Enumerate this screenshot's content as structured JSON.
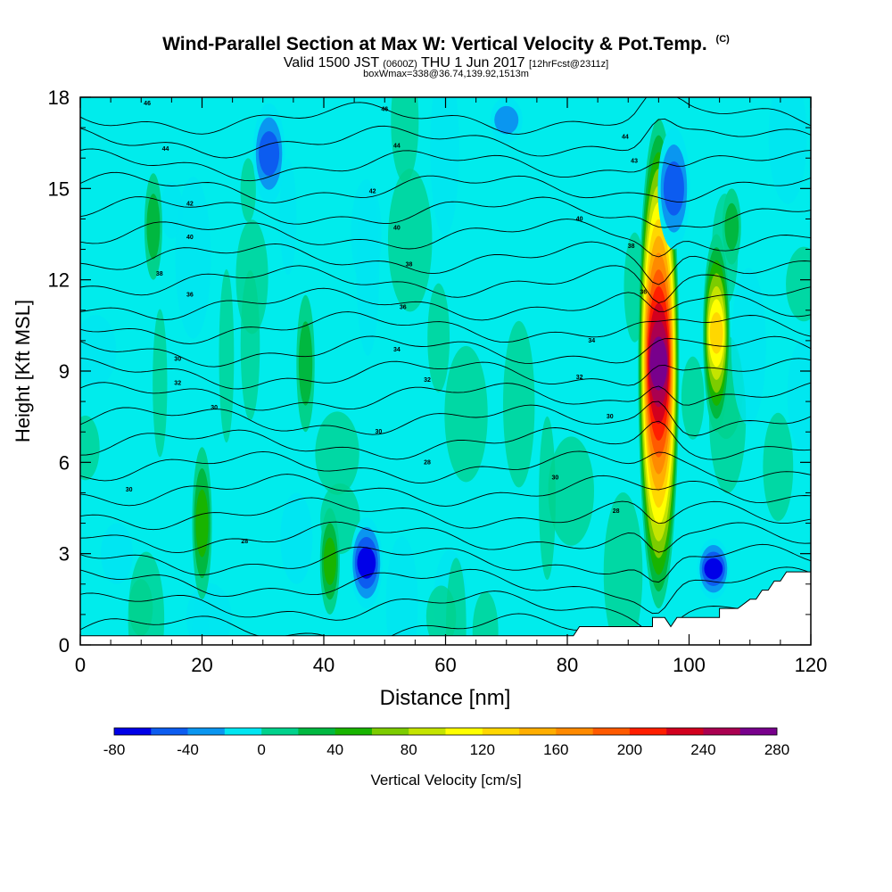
{
  "title": {
    "main": "Wind-Parallel Section at Max W: Vertical Velocity & Pot.Temp.",
    "copyright": "(C)",
    "valid_prefix": "Valid 1500 JST",
    "valid_utc": "(0600Z)",
    "valid_date": "THU 1 Jun 2017",
    "forecast": "[12hrFcst@2311z]",
    "box_info": "boxWmax=338@36.74,139.92,1513m"
  },
  "chart_data": {
    "type": "heatmap",
    "xlabel": "Distance [nm]",
    "ylabel": "Height [Kft MSL]",
    "xlim": [
      0,
      120
    ],
    "ylim": [
      0,
      18
    ],
    "x_ticks": [
      0,
      20,
      40,
      60,
      80,
      100,
      120
    ],
    "y_ticks": [
      0,
      3,
      6,
      9,
      12,
      15,
      18
    ],
    "grid": false,
    "colorbar": {
      "label": "Vertical Velocity [cm/s]",
      "placement": "bottom",
      "min": -80,
      "max": 280,
      "step": 20,
      "tick_labels": [
        -80,
        -40,
        0,
        40,
        80,
        120,
        160,
        200,
        240,
        280
      ],
      "colors": [
        "#0000e8",
        "#0c5cf0",
        "#0a96f0",
        "#00e6f2",
        "#00d28c",
        "#00b840",
        "#18b400",
        "#7ccc00",
        "#c4e400",
        "#ffff00",
        "#ffd700",
        "#ffae00",
        "#ff8a00",
        "#ff5a00",
        "#ff1e00",
        "#d2001e",
        "#aa0050",
        "#78008c"
      ]
    },
    "max_updraft": {
      "x": 95,
      "value": 338,
      "core_height": 9
    },
    "updrafts": [
      {
        "x": 95.0,
        "ymin": 1.2,
        "ymax": 17.3,
        "peak": 270
      },
      {
        "x": 104.5,
        "ymin": 7.0,
        "ymax": 13.5,
        "peak": 130
      },
      {
        "x": 20.0,
        "ymin": 1.5,
        "ymax": 6.5,
        "peak": 55
      },
      {
        "x": 37.0,
        "ymin": 7.0,
        "ymax": 11.5,
        "peak": 40
      },
      {
        "x": 41.0,
        "ymin": 1.0,
        "ymax": 4.5,
        "peak": 55
      },
      {
        "x": 107.0,
        "ymin": 12.5,
        "ymax": 15.0,
        "peak": 45
      },
      {
        "x": 12.0,
        "ymin": 12.0,
        "ymax": 15.5,
        "peak": 30
      }
    ],
    "downdrafts": [
      {
        "x": 31.0,
        "ymin": 14.5,
        "ymax": 17.8,
        "peak": -50
      },
      {
        "x": 47.0,
        "ymin": 1.2,
        "ymax": 4.2,
        "peak": -70
      },
      {
        "x": 97.5,
        "ymin": 13.0,
        "ymax": 17.0,
        "peak": -55
      },
      {
        "x": 104.0,
        "ymin": 1.5,
        "ymax": 3.5,
        "peak": -80
      },
      {
        "x": 35.5,
        "ymin": 2.0,
        "ymax": 5.0,
        "peak": -25
      },
      {
        "x": 6.0,
        "ymin": 2.0,
        "ymax": 4.0,
        "peak": -25
      },
      {
        "x": 70.0,
        "ymin": 16.5,
        "ymax": 18.0,
        "peak": -30
      }
    ],
    "terrain_profile": {
      "x": [
        0,
        81,
        82,
        94,
        94,
        96,
        97,
        98,
        105,
        105,
        108,
        110,
        111,
        112,
        113,
        114,
        115,
        116,
        117,
        120
      ],
      "height": [
        0.3,
        0.3,
        0.6,
        0.6,
        0.9,
        0.9,
        0.6,
        0.9,
        0.9,
        1.2,
        1.2,
        1.5,
        1.5,
        1.8,
        1.8,
        2.1,
        2.1,
        2.4,
        2.4,
        2.4
      ]
    },
    "theta_contours": {
      "levels": [
        26,
        27,
        28,
        29,
        30,
        31,
        32,
        33,
        34,
        35,
        36,
        37,
        38,
        39,
        40,
        41,
        42,
        43,
        44,
        45,
        46,
        47,
        48
      ]
    },
    "contour_labels": [
      {
        "x": 11,
        "y": 17.8,
        "text": "46"
      },
      {
        "x": 50,
        "y": 17.6,
        "text": "46"
      },
      {
        "x": 14,
        "y": 16.3,
        "text": "44"
      },
      {
        "x": 52,
        "y": 16.4,
        "text": "44"
      },
      {
        "x": 89.5,
        "y": 16.7,
        "text": "44"
      },
      {
        "x": 91,
        "y": 15.9,
        "text": "43"
      },
      {
        "x": 18,
        "y": 14.5,
        "text": "42"
      },
      {
        "x": 48,
        "y": 14.9,
        "text": "42"
      },
      {
        "x": 82,
        "y": 14.0,
        "text": "40"
      },
      {
        "x": 18,
        "y": 13.4,
        "text": "40"
      },
      {
        "x": 52,
        "y": 13.7,
        "text": "40"
      },
      {
        "x": 90.5,
        "y": 13.1,
        "text": "38"
      },
      {
        "x": 13,
        "y": 12.2,
        "text": "38"
      },
      {
        "x": 54,
        "y": 12.5,
        "text": "38"
      },
      {
        "x": 92.5,
        "y": 11.6,
        "text": "36"
      },
      {
        "x": 18,
        "y": 11.5,
        "text": "36"
      },
      {
        "x": 53,
        "y": 11.1,
        "text": "36"
      },
      {
        "x": 84,
        "y": 10.0,
        "text": "34"
      },
      {
        "x": 52,
        "y": 9.7,
        "text": "34"
      },
      {
        "x": 16,
        "y": 9.4,
        "text": "30"
      },
      {
        "x": 82,
        "y": 8.8,
        "text": "32"
      },
      {
        "x": 57,
        "y": 8.7,
        "text": "32"
      },
      {
        "x": 16,
        "y": 8.6,
        "text": "32"
      },
      {
        "x": 22,
        "y": 7.8,
        "text": "30"
      },
      {
        "x": 87,
        "y": 7.5,
        "text": "30"
      },
      {
        "x": 49,
        "y": 7.0,
        "text": "30"
      },
      {
        "x": 57,
        "y": 6.0,
        "text": "28"
      },
      {
        "x": 78,
        "y": 5.5,
        "text": "30"
      },
      {
        "x": 8,
        "y": 5.1,
        "text": "30"
      },
      {
        "x": 88,
        "y": 4.4,
        "text": "28"
      },
      {
        "x": 27,
        "y": 3.4,
        "text": "28"
      }
    ]
  }
}
